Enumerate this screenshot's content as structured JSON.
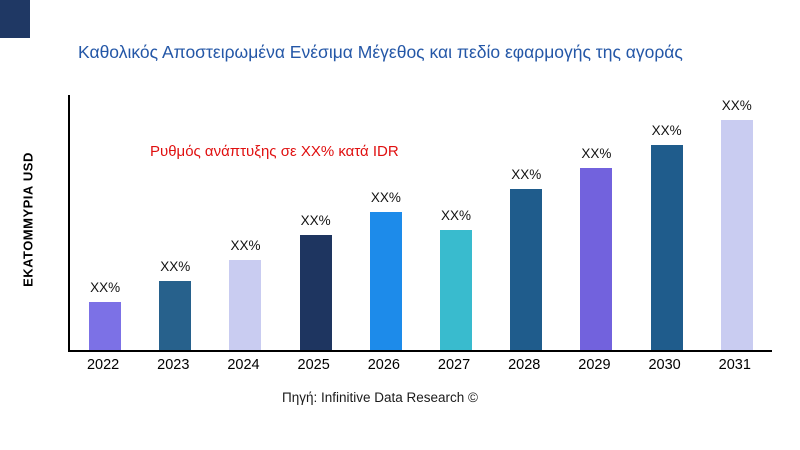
{
  "page": {
    "title": "Καθολικός Αποστειρωμένα Ενέσιμα Μέγεθος και πεδίο εφαρμογής της αγοράς",
    "annotation": "Ρυθμός ανάπτυξης σε XX% κατά IDR",
    "source": "Πηγή: Infinitive Data Research ©",
    "corner_block_color": "#1F3864",
    "title_color": "#2457A7",
    "annotation_color": "#E01010"
  },
  "chart_data": {
    "type": "bar",
    "title": "Καθολικός Αποστειρωμένα Ενέσιμα Μέγεθος και πεδίο εφαρμογής της αγοράς",
    "xlabel": "",
    "ylabel": "ΕΚΑΤΟΜΜΥΡΙΑ USD",
    "categories": [
      "2022",
      "2023",
      "2024",
      "2025",
      "2026",
      "2027",
      "2028",
      "2029",
      "2030",
      "2031"
    ],
    "values": [
      21,
      30,
      39,
      50,
      60,
      52,
      70,
      79,
      89,
      100
    ],
    "value_unit": "relative-percent-of-tallest-bar",
    "bar_labels": [
      "XX%",
      "XX%",
      "XX%",
      "XX%",
      "XX%",
      "XX%",
      "XX%",
      "XX%",
      "XX%",
      "XX%"
    ],
    "bar_colors": [
      "#7C71E6",
      "#27618C",
      "#C9CCF1",
      "#1E3560",
      "#1D8BEA",
      "#39BBCE",
      "#1F5C8C",
      "#7262DD",
      "#1F5C8C",
      "#C9CCF1"
    ],
    "annotation": "Ρυθμός ανάπτυξης σε XX% κατά IDR",
    "ylim": [
      0,
      110
    ],
    "grid": false,
    "legend": "none",
    "data_labels_shown": true,
    "axis_values_shown": false
  }
}
